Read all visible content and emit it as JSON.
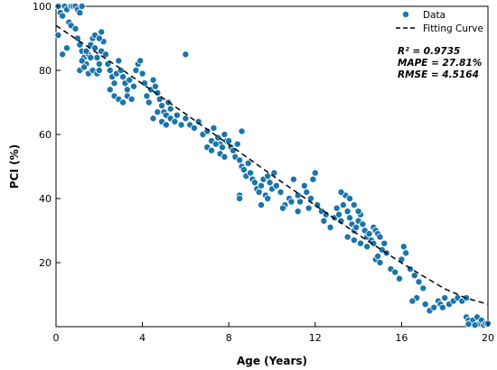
{
  "chart_data": {
    "type": "scatter",
    "title": "",
    "xlabel": "Age (Years)",
    "ylabel": "PCI (%)",
    "xlim": [
      0,
      20
    ],
    "ylim": [
      0,
      100
    ],
    "xticks": [
      0,
      4,
      8,
      12,
      16,
      20
    ],
    "yticks": [
      20,
      40,
      60,
      80,
      100
    ],
    "grid": false,
    "legend_position": "top-right",
    "colors": {
      "data": "#1a75aa",
      "curve": "#000000"
    },
    "series": [
      {
        "name": "Data",
        "kind": "scatter",
        "points": [
          [
            0.1,
            100
          ],
          [
            0.2,
            98
          ],
          [
            0.3,
            97
          ],
          [
            0.4,
            100
          ],
          [
            0.5,
            99
          ],
          [
            0.6,
            95
          ],
          [
            0.7,
            100
          ],
          [
            0.8,
            100
          ],
          [
            0.9,
            100
          ],
          [
            1.0,
            99
          ],
          [
            1.1,
            98
          ],
          [
            1.2,
            100
          ],
          [
            0.1,
            91
          ],
          [
            0.3,
            85
          ],
          [
            0.5,
            87
          ],
          [
            0.7,
            94
          ],
          [
            0.9,
            93
          ],
          [
            1.0,
            90
          ],
          [
            1.1,
            88
          ],
          [
            1.2,
            86
          ],
          [
            1.3,
            84
          ],
          [
            1.4,
            82
          ],
          [
            1.5,
            85
          ],
          [
            1.6,
            88
          ],
          [
            1.7,
            90
          ],
          [
            1.8,
            87
          ],
          [
            1.9,
            84
          ],
          [
            2.0,
            82
          ],
          [
            2.1,
            86
          ],
          [
            2.2,
            89
          ],
          [
            1.1,
            80
          ],
          [
            1.3,
            81
          ],
          [
            1.5,
            79
          ],
          [
            1.7,
            80
          ],
          [
            1.9,
            79
          ],
          [
            2.0,
            80
          ],
          [
            1.2,
            83
          ],
          [
            1.4,
            86
          ],
          [
            1.6,
            84
          ],
          [
            1.8,
            91
          ],
          [
            2.0,
            90
          ],
          [
            2.1,
            92
          ],
          [
            2.3,
            85
          ],
          [
            2.4,
            82
          ],
          [
            2.5,
            80
          ],
          [
            2.6,
            78
          ],
          [
            2.7,
            76
          ],
          [
            2.8,
            79
          ],
          [
            2.9,
            83
          ],
          [
            3.0,
            80
          ],
          [
            3.1,
            78
          ],
          [
            3.2,
            76
          ],
          [
            3.3,
            74
          ],
          [
            3.4,
            77
          ],
          [
            2.5,
            74
          ],
          [
            2.7,
            72
          ],
          [
            2.9,
            71
          ],
          [
            3.1,
            70
          ],
          [
            3.3,
            72
          ],
          [
            3.5,
            71
          ],
          [
            3.6,
            75
          ],
          [
            3.7,
            80
          ],
          [
            3.8,
            82
          ],
          [
            3.9,
            83
          ],
          [
            4.0,
            79
          ],
          [
            4.1,
            76
          ],
          [
            4.2,
            72
          ],
          [
            4.3,
            70
          ],
          [
            4.4,
            74
          ],
          [
            4.5,
            77
          ],
          [
            4.6,
            75
          ],
          [
            4.7,
            73
          ],
          [
            4.8,
            71
          ],
          [
            4.9,
            69
          ],
          [
            5.0,
            67
          ],
          [
            5.1,
            66
          ],
          [
            5.2,
            70
          ],
          [
            5.3,
            68
          ],
          [
            4.5,
            65
          ],
          [
            4.7,
            67
          ],
          [
            4.9,
            64
          ],
          [
            5.1,
            63
          ],
          [
            5.3,
            65
          ],
          [
            5.5,
            64
          ],
          [
            5.6,
            66
          ],
          [
            5.8,
            63
          ],
          [
            6.0,
            65
          ],
          [
            6.0,
            85
          ],
          [
            6.2,
            63
          ],
          [
            6.4,
            62
          ],
          [
            6.6,
            64
          ],
          [
            6.8,
            60
          ],
          [
            7.0,
            61
          ],
          [
            7.2,
            58
          ],
          [
            7.3,
            62
          ],
          [
            7.5,
            59
          ],
          [
            7.6,
            57
          ],
          [
            7.7,
            56
          ],
          [
            7.8,
            60
          ],
          [
            7.9,
            58
          ],
          [
            7.0,
            56
          ],
          [
            7.2,
            55
          ],
          [
            7.4,
            57
          ],
          [
            7.6,
            54
          ],
          [
            7.8,
            53
          ],
          [
            8.0,
            58
          ],
          [
            8.1,
            56
          ],
          [
            8.2,
            55
          ],
          [
            8.3,
            53
          ],
          [
            8.4,
            57
          ],
          [
            8.5,
            52
          ],
          [
            8.6,
            50
          ],
          [
            8.7,
            49
          ],
          [
            8.8,
            47
          ],
          [
            8.9,
            51
          ],
          [
            9.0,
            48
          ],
          [
            9.1,
            46
          ],
          [
            8.6,
            61
          ],
          [
            8.5,
            41
          ],
          [
            8.5,
            40
          ],
          [
            9.2,
            45
          ],
          [
            9.3,
            43
          ],
          [
            9.4,
            42
          ],
          [
            9.5,
            44
          ],
          [
            9.6,
            46
          ],
          [
            9.7,
            41
          ],
          [
            9.8,
            47
          ],
          [
            9.9,
            45
          ],
          [
            10.0,
            43
          ],
          [
            10.1,
            48
          ],
          [
            9.5,
            38
          ],
          [
            9.8,
            40
          ],
          [
            10.2,
            44
          ],
          [
            10.4,
            42
          ],
          [
            10.6,
            38
          ],
          [
            10.8,
            40
          ],
          [
            11.0,
            46
          ],
          [
            11.2,
            41
          ],
          [
            11.3,
            39
          ],
          [
            11.5,
            44
          ],
          [
            11.6,
            42
          ],
          [
            11.8,
            40
          ],
          [
            11.9,
            46
          ],
          [
            12.0,
            48
          ],
          [
            10.5,
            37
          ],
          [
            10.9,
            39
          ],
          [
            11.2,
            36
          ],
          [
            11.7,
            37
          ],
          [
            12.1,
            38
          ],
          [
            12.3,
            36
          ],
          [
            12.4,
            33
          ],
          [
            12.5,
            35
          ],
          [
            12.7,
            31
          ],
          [
            12.9,
            34
          ],
          [
            13.0,
            37
          ],
          [
            13.1,
            35
          ],
          [
            13.2,
            33
          ],
          [
            13.3,
            38
          ],
          [
            13.4,
            41
          ],
          [
            13.5,
            36
          ],
          [
            13.6,
            34
          ],
          [
            13.7,
            32
          ],
          [
            13.8,
            30
          ],
          [
            13.9,
            31
          ],
          [
            14.0,
            33
          ],
          [
            14.1,
            35
          ],
          [
            13.2,
            42
          ],
          [
            13.6,
            40
          ],
          [
            13.8,
            38
          ],
          [
            14.0,
            36
          ],
          [
            14.2,
            32
          ],
          [
            14.3,
            30
          ],
          [
            14.4,
            28
          ],
          [
            14.5,
            29
          ],
          [
            14.6,
            27
          ],
          [
            14.7,
            31
          ],
          [
            14.8,
            30
          ],
          [
            14.9,
            29
          ],
          [
            13.5,
            28
          ],
          [
            13.8,
            27
          ],
          [
            14.1,
            26
          ],
          [
            14.4,
            25
          ],
          [
            14.7,
            26
          ],
          [
            15.0,
            28
          ],
          [
            15.1,
            24
          ],
          [
            15.2,
            26
          ],
          [
            14.8,
            21
          ],
          [
            15.0,
            20
          ],
          [
            14.9,
            22
          ],
          [
            15.3,
            23
          ],
          [
            15.5,
            18
          ],
          [
            15.7,
            17
          ],
          [
            15.9,
            15
          ],
          [
            16.0,
            21
          ],
          [
            16.1,
            25
          ],
          [
            16.2,
            23
          ],
          [
            16.4,
            18
          ],
          [
            16.6,
            16
          ],
          [
            16.8,
            14
          ],
          [
            17.0,
            12
          ],
          [
            16.7,
            9
          ],
          [
            16.5,
            8
          ],
          [
            17.1,
            7
          ],
          [
            17.3,
            5
          ],
          [
            17.5,
            6
          ],
          [
            17.7,
            8
          ],
          [
            17.8,
            7
          ],
          [
            17.9,
            6
          ],
          [
            18.0,
            9
          ],
          [
            18.2,
            7
          ],
          [
            18.4,
            8
          ],
          [
            18.6,
            9
          ],
          [
            18.8,
            8
          ],
          [
            19.0,
            9
          ],
          [
            19.0,
            3
          ],
          [
            19.1,
            2
          ],
          [
            19.2,
            1
          ],
          [
            19.3,
            2
          ],
          [
            19.5,
            3
          ],
          [
            19.6,
            1
          ],
          [
            19.7,
            2
          ],
          [
            19.8,
            0.5
          ],
          [
            19.9,
            1
          ],
          [
            20.0,
            1
          ],
          [
            19.4,
            0.5
          ],
          [
            19.1,
            0.8
          ]
        ]
      },
      {
        "name": "Fitting Curve",
        "kind": "line",
        "style": "dashed",
        "x": [
          0,
          1,
          2,
          3,
          4,
          5,
          6,
          7,
          8,
          9,
          10,
          11,
          12,
          13,
          14,
          15,
          16,
          17,
          18,
          19,
          20
        ],
        "y": [
          94,
          89.5,
          85,
          80.5,
          75.8,
          71.1,
          66.4,
          61.6,
          56.9,
          52.1,
          47.3,
          42.6,
          37.9,
          33.3,
          28.7,
          24.3,
          19.9,
          15.8,
          11.8,
          8.9,
          7
        ]
      }
    ],
    "annotations": [
      "R² = 0.9735",
      "MAPE = 27.81%",
      "RMSE = 4.5164"
    ]
  }
}
